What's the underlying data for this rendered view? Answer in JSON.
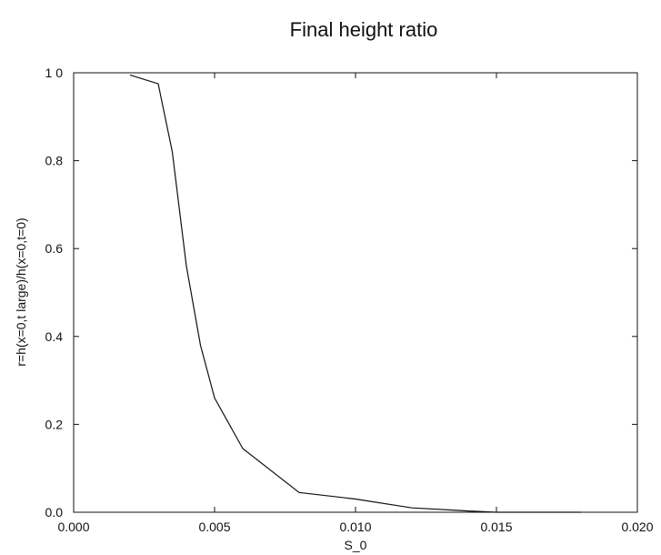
{
  "chart_data": {
    "type": "line",
    "title": "Final height ratio",
    "xlabel": "S_0",
    "ylabel": "r=h(x=0,t large)/h(x=0,t=0)",
    "xlim": [
      0.0,
      0.02
    ],
    "ylim": [
      0.0,
      1.0
    ],
    "x_ticks": [
      "0.000",
      "0.005",
      "0.010",
      "0.015",
      "0.020"
    ],
    "y_ticks": [
      "0.0",
      "0.2",
      "0.4",
      "0.6",
      "0.8",
      "1 0"
    ],
    "grid": false,
    "series": [
      {
        "x": [
          0.002,
          0.003,
          0.0035,
          0.004,
          0.0045,
          0.005,
          0.006,
          0.008,
          0.01,
          0.012,
          0.014,
          0.015,
          0.018
        ],
        "y": [
          0.995,
          0.975,
          0.82,
          0.56,
          0.38,
          0.26,
          0.145,
          0.045,
          0.03,
          0.01,
          0.003,
          0.0,
          0.0
        ]
      }
    ]
  }
}
